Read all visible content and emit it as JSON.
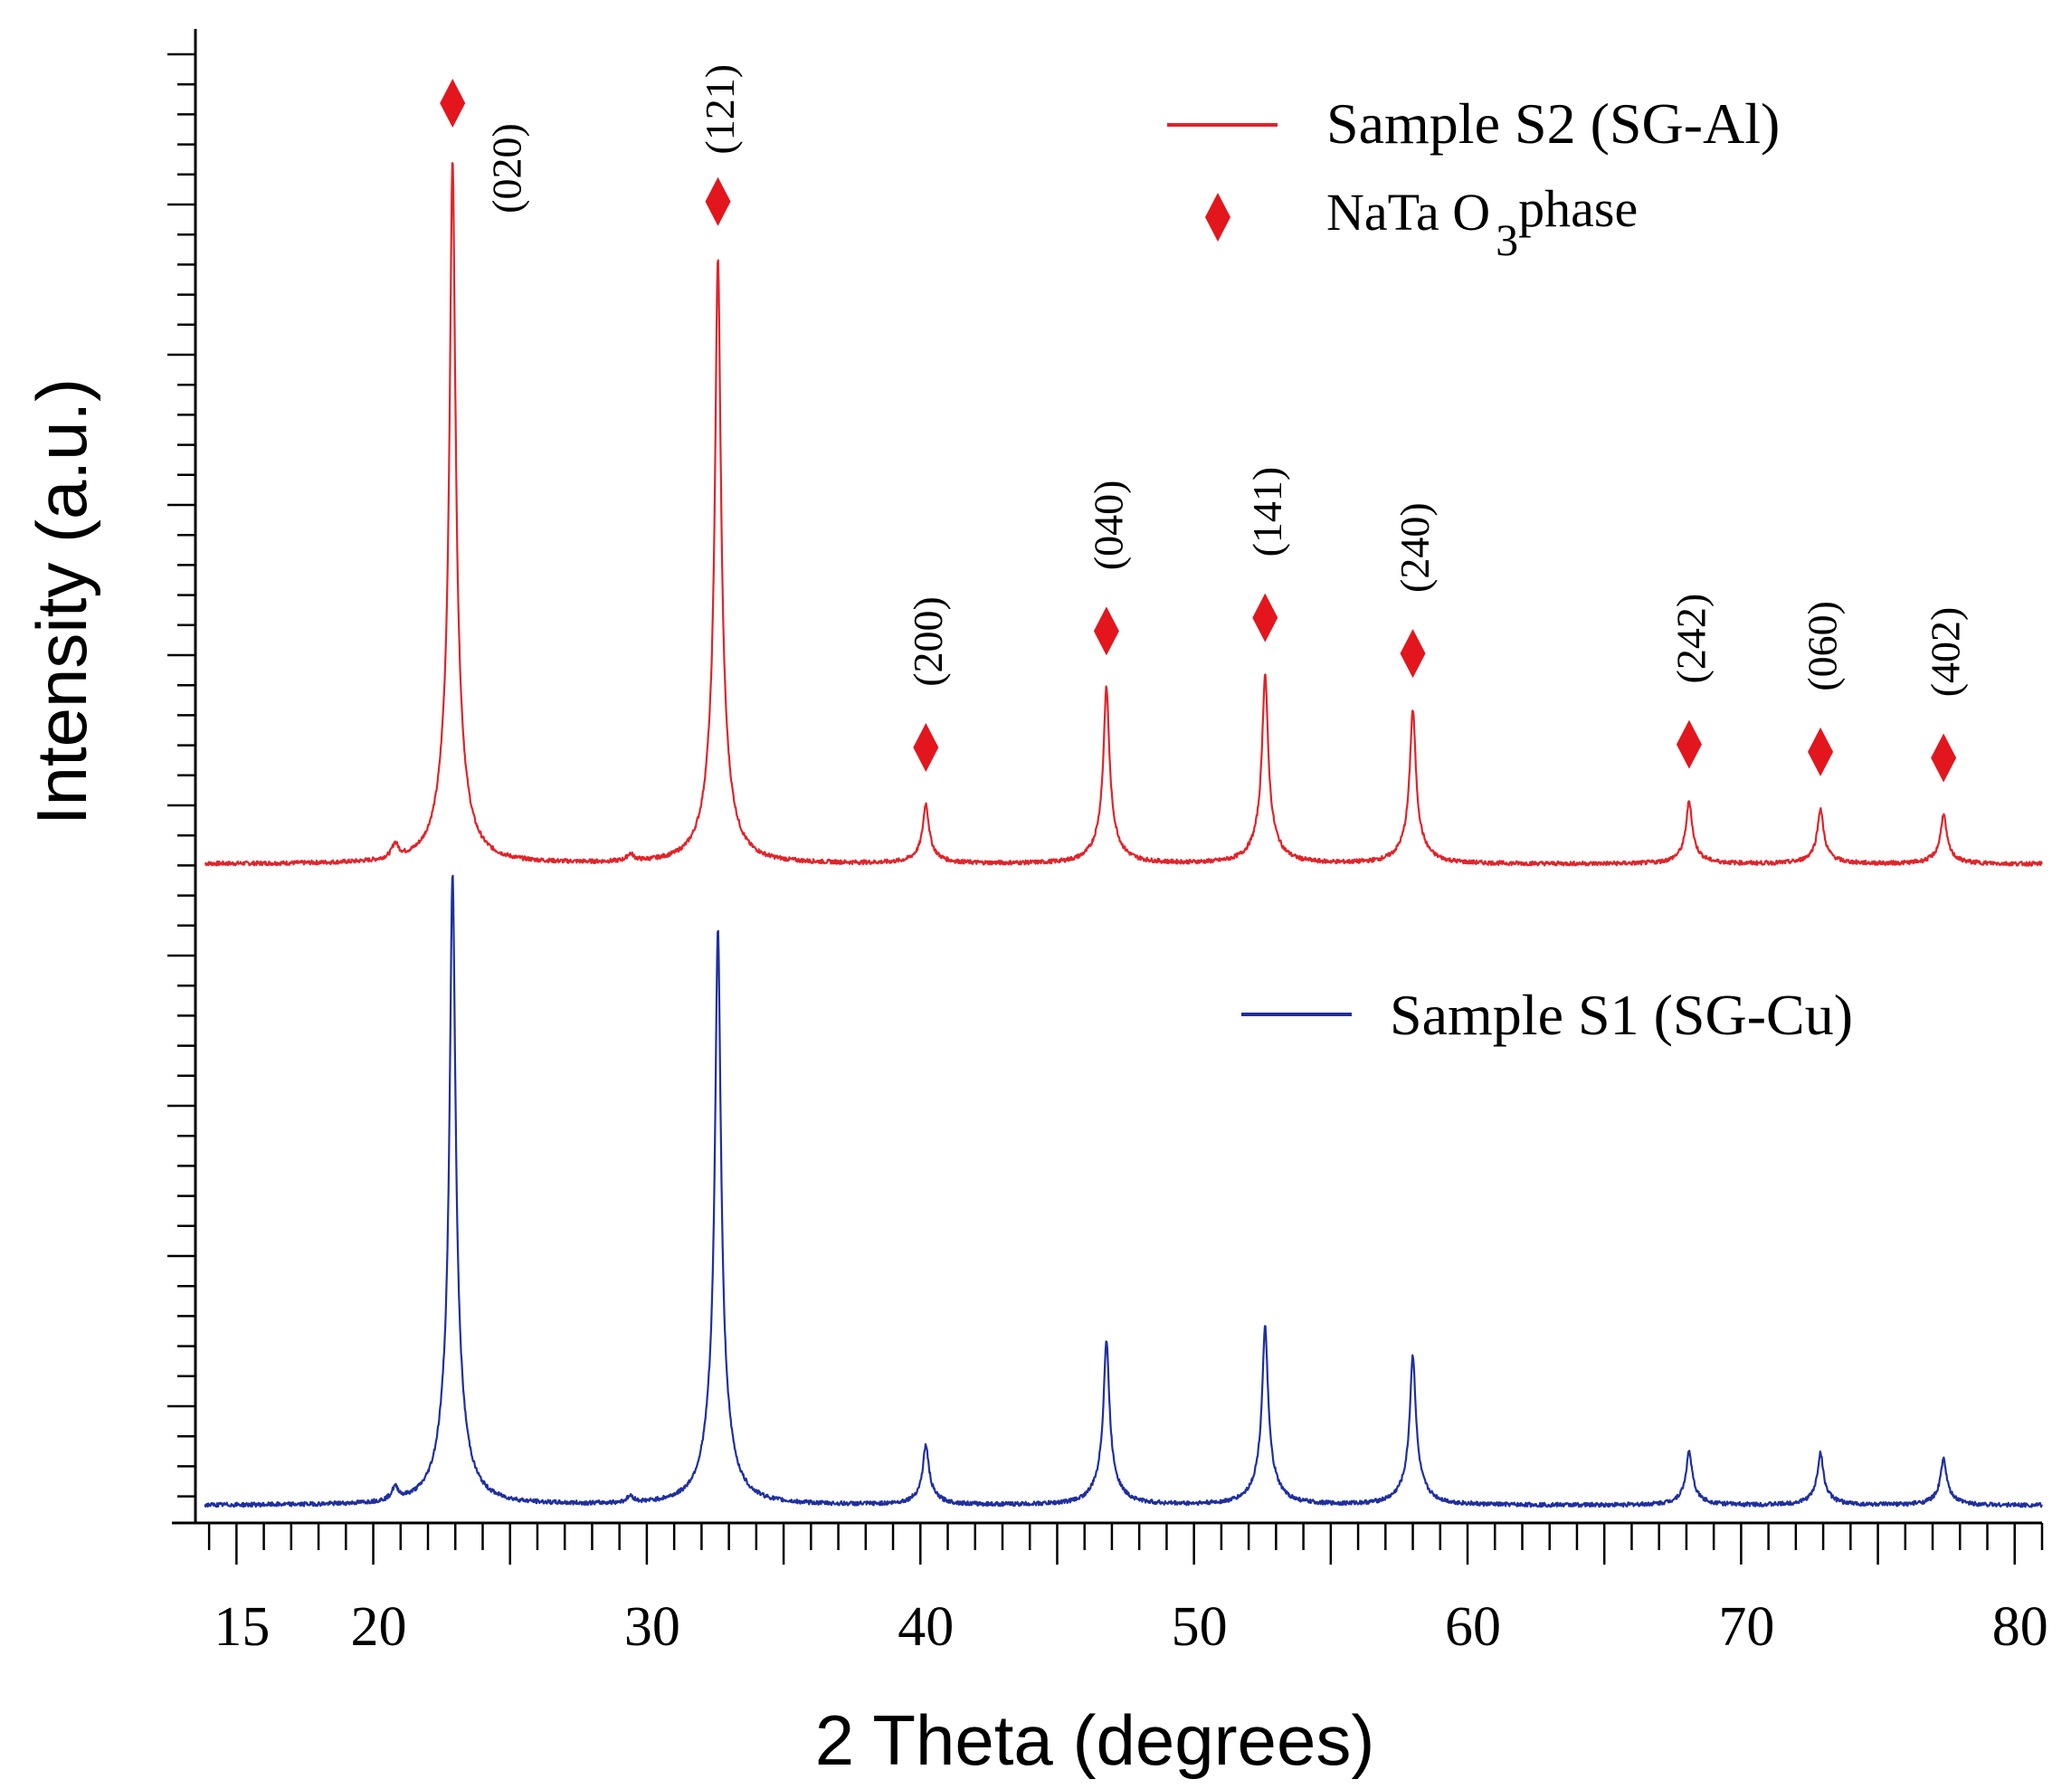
{
  "chart_data": {
    "type": "line",
    "xlabel": "2 Theta (degrees)",
    "ylabel": "Intensity (a.u.)",
    "xlim": [
      13.5,
      81
    ],
    "ylim": [
      0,
      100
    ],
    "x_tick_labels": [
      "15",
      "20",
      "30",
      "40",
      "50",
      "60",
      "70",
      "80"
    ],
    "x_tick_values": [
      15,
      20,
      30,
      40,
      50,
      60,
      70,
      80
    ],
    "grid": false,
    "baseline": 1.0,
    "peak_width": 0.12,
    "minor_peaks": [
      {
        "x": 20.8,
        "rel": 0.02
      },
      {
        "x": 29.4,
        "rel": 0.01
      }
    ],
    "series": [
      {
        "name": "Sample S2 (SG-Al)",
        "color": "#e0242a",
        "offset": 43,
        "peaks": [
          {
            "x": 22.9,
            "h": 47.2,
            "hkl": "(020)"
          },
          {
            "x": 32.6,
            "h": 40.6,
            "hkl": "(121)"
          },
          {
            "x": 40.2,
            "h": 4.0,
            "hkl": "(200)"
          },
          {
            "x": 46.8,
            "h": 11.8,
            "hkl": "(040)"
          },
          {
            "x": 52.6,
            "h": 12.7,
            "hkl": "(141)"
          },
          {
            "x": 58.0,
            "h": 10.3,
            "hkl": "(240)"
          },
          {
            "x": 68.1,
            "h": 4.2,
            "hkl": "(242)"
          },
          {
            "x": 72.9,
            "h": 3.7,
            "hkl": "(060)"
          },
          {
            "x": 77.4,
            "h": 3.3,
            "hkl": "(402)"
          }
        ]
      },
      {
        "name": "Sample S1 (SG-Cu)",
        "color": "#1f2fa0",
        "offset": 0,
        "peaks": [
          {
            "x": 22.9,
            "h": 42.3
          },
          {
            "x": 32.6,
            "h": 38.6
          },
          {
            "x": 40.2,
            "h": 4.0
          },
          {
            "x": 46.8,
            "h": 11.0
          },
          {
            "x": 52.6,
            "h": 11.9
          },
          {
            "x": 58.0,
            "h": 10.0
          },
          {
            "x": 68.1,
            "h": 3.6
          },
          {
            "x": 72.9,
            "h": 3.5
          },
          {
            "x": 77.4,
            "h": 3.1
          }
        ]
      }
    ],
    "markers": {
      "label": "NaTa O3 phase",
      "color": "#e3161d",
      "x": [
        22.9,
        32.6,
        40.2,
        46.8,
        52.6,
        58.0,
        68.1,
        72.9,
        77.4
      ]
    },
    "legend": [
      {
        "label": "Sample S2 (SG-Al)",
        "kind": "line",
        "color": "#e0242a"
      },
      {
        "label": "NaTa O",
        "sub": "3",
        "tail": " phase",
        "kind": "diamond",
        "color": "#e3161d"
      },
      {
        "label": "Sample S1 (SG-Cu)",
        "kind": "line",
        "color": "#1f2fa0"
      }
    ]
  }
}
